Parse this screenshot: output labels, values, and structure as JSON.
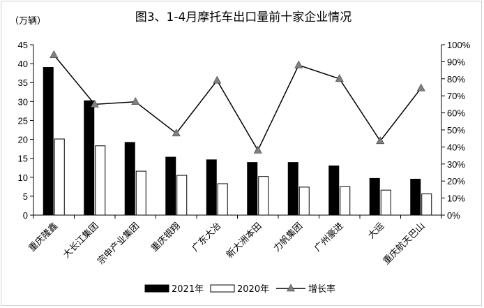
{
  "chart_data": {
    "type": "bar",
    "title": "图3、1-4月摩托车出口量前十家企业情况",
    "y_unit_label": "（万辆）",
    "categories": [
      "重庆隆鑫",
      "大长江集团",
      "宗申产业集团",
      "重庆银翔",
      "广东大冶",
      "新大洲本田",
      "力帆集团",
      "广州豪进",
      "大运",
      "重庆航天巴山"
    ],
    "series": [
      {
        "name": "2021年",
        "kind": "bar",
        "color": "#000000",
        "values": [
          39.0,
          30.2,
          19.2,
          15.3,
          14.6,
          13.9,
          13.9,
          13.0,
          9.7,
          9.5
        ]
      },
      {
        "name": "2020年",
        "kind": "bar",
        "color": "#ffffff",
        "values": [
          20.1,
          18.3,
          11.6,
          10.5,
          8.3,
          10.2,
          7.4,
          7.5,
          6.6,
          5.6
        ]
      },
      {
        "name": "增长率",
        "kind": "line",
        "axis": "right",
        "color": "#000000",
        "values": [
          0.94,
          0.65,
          0.665,
          0.48,
          0.79,
          0.38,
          0.88,
          0.8,
          0.435,
          0.745
        ]
      }
    ],
    "y_left": {
      "min": 0,
      "max": 45,
      "step": 5,
      "ticks": [
        "0",
        "5",
        "10",
        "15",
        "20",
        "25",
        "30",
        "35",
        "40",
        "45"
      ]
    },
    "y_right": {
      "min": 0,
      "max": 1,
      "step": 0.1,
      "ticks": [
        "0%",
        "10%",
        "20%",
        "30%",
        "40%",
        "50%",
        "60%",
        "70%",
        "80%",
        "90%",
        "100%"
      ]
    },
    "legend": {
      "position": "bottom",
      "items": [
        "2021年",
        "2020年",
        "增长率"
      ]
    },
    "grid": false
  }
}
